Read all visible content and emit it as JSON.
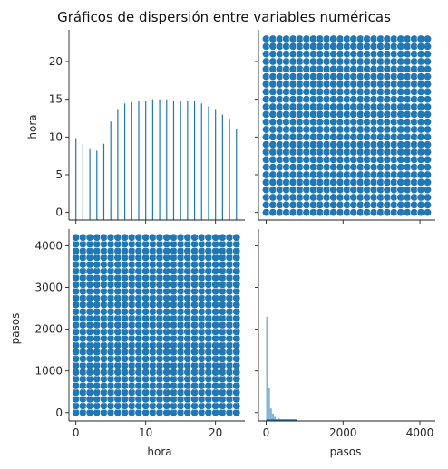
{
  "chart_data": {
    "type": "scatter",
    "title": "Gráficos de dispersión entre variables numéricas",
    "variables": [
      "hora",
      "pasos"
    ],
    "colors": {
      "accent": "#1f77b4"
    },
    "grid": false,
    "panels": {
      "hora_hist": {
        "type": "bar",
        "x": [
          0,
          1,
          2,
          3,
          4,
          5,
          6,
          7,
          8,
          9,
          10,
          11,
          12,
          13,
          14,
          15,
          16,
          17,
          18,
          19,
          20,
          21,
          22,
          23
        ],
        "values": [
          5.9,
          5.5,
          5.1,
          5.0,
          5.5,
          7.1,
          8.0,
          8.4,
          8.5,
          8.6,
          8.6,
          8.7,
          8.7,
          8.7,
          8.6,
          8.6,
          8.6,
          8.6,
          8.4,
          8.2,
          8.0,
          7.6,
          7.3,
          6.6
        ]
      },
      "hora_vs_pasos": {
        "type": "scatter",
        "x_variable": "pasos",
        "y_variable": "hora",
        "x_range": [
          0,
          4200
        ],
        "y_values": [
          0,
          1,
          2,
          3,
          4,
          5,
          6,
          7,
          8,
          9,
          10,
          11,
          12,
          13,
          14,
          15,
          16,
          17,
          18,
          19,
          20,
          21,
          22,
          23
        ]
      },
      "pasos_vs_hora": {
        "type": "scatter",
        "x_variable": "hora",
        "y_variable": "pasos",
        "x_values": [
          0,
          1,
          2,
          3,
          4,
          5,
          6,
          7,
          8,
          9,
          10,
          11,
          12,
          13,
          14,
          15,
          16,
          17,
          18,
          19,
          20,
          21,
          22,
          23
        ],
        "y_range": [
          0,
          4200
        ]
      },
      "pasos_hist": {
        "type": "bar",
        "bins_start": [
          0,
          50,
          100,
          150,
          200,
          300,
          400,
          500,
          600,
          700,
          800
        ],
        "bin_width": 50,
        "values": [
          10,
          3.2,
          1.2,
          0.7,
          0.4,
          0.25,
          0.15,
          0.1,
          0.05,
          0.03,
          0.02
        ]
      }
    },
    "axes": {
      "hora": {
        "label": "hora",
        "ticks": [
          0,
          10,
          20
        ],
        "ticks_left": [
          0,
          5,
          10,
          15,
          20
        ],
        "range": [
          -1,
          24.2
        ]
      },
      "pasos": {
        "label": "pasos",
        "ticks": [
          0,
          2000,
          4000
        ],
        "ticks_left": [
          0,
          1000,
          2000,
          3000,
          4000
        ],
        "range": [
          -200,
          4400
        ]
      }
    }
  }
}
